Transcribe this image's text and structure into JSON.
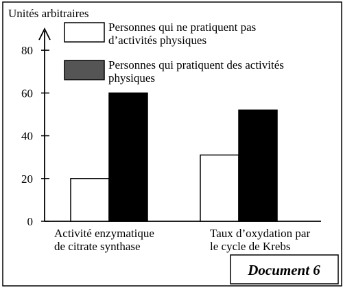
{
  "chart_data": {
    "type": "bar",
    "title": "",
    "ylabel": "Unités arbitraires",
    "xlabel": "",
    "ylim": [
      0,
      90
    ],
    "yticks": [
      0,
      20,
      40,
      60,
      80
    ],
    "grid": false,
    "legend_position": "top",
    "categories": [
      [
        "Activité enzymatique",
        "de citrate synthase"
      ],
      [
        "Taux d’oxydation par",
        "le cycle de Krebs"
      ]
    ],
    "series": [
      {
        "name": [
          "Personnes qui ne pratiquent pas",
          "d’activités physiques"
        ],
        "values": [
          20,
          31
        ],
        "color": "#ffffff"
      },
      {
        "name": [
          "Personnes qui pratiquent des activités",
          "physiques"
        ],
        "values": [
          60,
          52
        ],
        "color": "#000000"
      }
    ],
    "legend_swatch_colors": [
      "#ffffff",
      "#555555"
    ],
    "document_label": "Document 6"
  }
}
